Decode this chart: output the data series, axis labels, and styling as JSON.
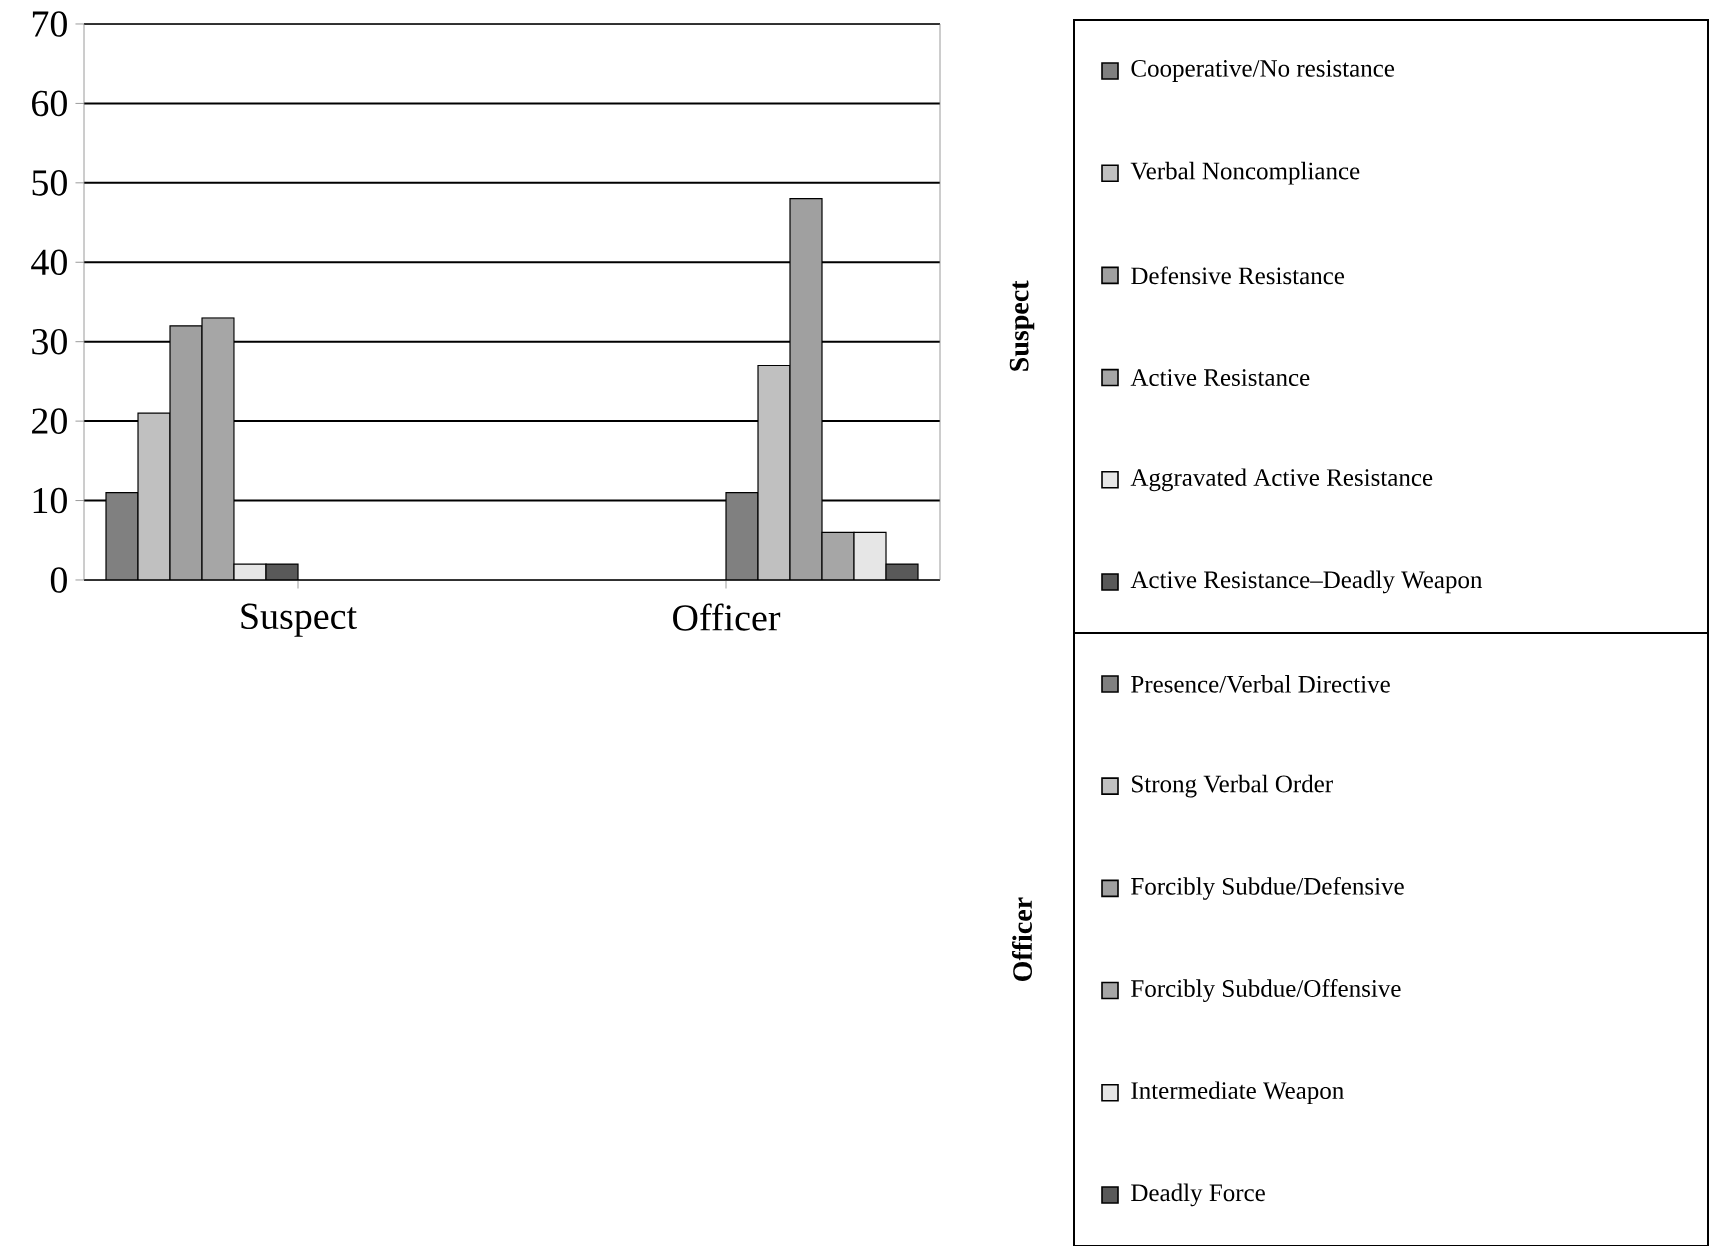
{
  "chart_data": {
    "type": "bar",
    "categories": [
      "Suspect",
      "Officer"
    ],
    "series": [
      {
        "name": "Cooperative/No resistance",
        "color": "#808080",
        "values": [
          11,
          null
        ]
      },
      {
        "name": "Verbal Noncompliance",
        "color": "#c0c0c0",
        "values": [
          21,
          null
        ]
      },
      {
        "name": "Defensive Resistance",
        "color": "#a0a0a0",
        "values": [
          32,
          null
        ]
      },
      {
        "name": "Active Resistance",
        "color": "#a6a6a6",
        "values": [
          33,
          null
        ]
      },
      {
        "name": "Aggravated Active Resistance",
        "color": "#e6e6e6",
        "values": [
          2,
          null
        ]
      },
      {
        "name": "Active Resistance–Deadly Weapon",
        "color": "#595959",
        "values": [
          2,
          null
        ]
      },
      {
        "name": "Presence/Verbal Directive",
        "color": "#808080",
        "values": [
          null,
          11
        ]
      },
      {
        "name": "Strong Verbal Order",
        "color": "#c0c0c0",
        "values": [
          null,
          27
        ]
      },
      {
        "name": "Forcibly Subdue/Defensive",
        "color": "#a0a0a0",
        "values": [
          null,
          48
        ]
      },
      {
        "name": "Forcibly Subdue/Offensive",
        "color": "#a6a6a6",
        "values": [
          null,
          6
        ]
      },
      {
        "name": "Intermediate Weapon",
        "color": "#e6e6e6",
        "values": [
          null,
          6
        ]
      },
      {
        "name": "Deadly Force",
        "color": "#595959",
        "values": [
          null,
          2
        ]
      }
    ],
    "ylim": [
      0,
      70
    ],
    "yticks": [
      0,
      10,
      20,
      30,
      40,
      50,
      60,
      70
    ],
    "grid": "y",
    "legend": "right"
  }
}
